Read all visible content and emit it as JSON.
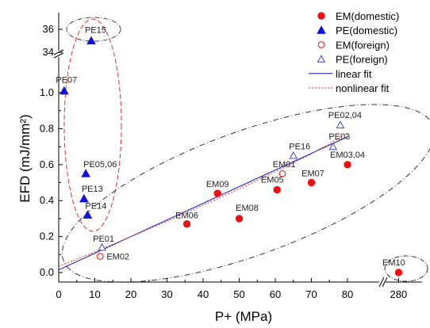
{
  "chart_data": {
    "type": "scatter",
    "xlabel": "P+ (MPa)",
    "ylabel": "EFD (mJ/mm²)",
    "x_ticks": [
      "0",
      "10",
      "20",
      "30",
      "40",
      "50",
      "60",
      "70",
      "80",
      "280"
    ],
    "y_ticks": [
      "0.0",
      "0.2",
      "0.4",
      "0.6",
      "0.8",
      "1.0"
    ],
    "y_ticks_upper": [
      "34",
      "36"
    ],
    "axis_break": {
      "x_from": 88,
      "x_to": 280,
      "y_from": 1.1,
      "y_to": 34
    },
    "legend": {
      "position": "top-right",
      "entries": [
        {
          "key": "em_dom",
          "label": "EM(domestic)",
          "marker": "filled-circle"
        },
        {
          "key": "pe_dom",
          "label": "PE(domestic)",
          "marker": "filled-triangle"
        },
        {
          "key": "em_for",
          "label": "EM(foreign)",
          "marker": "open-circle"
        },
        {
          "key": "pe_for",
          "label": "PE(foreign)",
          "marker": "open-triangle"
        },
        {
          "key": "linear",
          "label": "linear fit",
          "line": "solid"
        },
        {
          "key": "nonlinear",
          "label": "nonlinear fit",
          "line": "dotted"
        }
      ]
    },
    "series": [
      {
        "name": "EM(domestic)",
        "marker": "filled-circle",
        "color": "#ee1111",
        "points": [
          {
            "x": 35.5,
            "y": 0.27,
            "label": "EM06"
          },
          {
            "x": 44,
            "y": 0.44,
            "label": "EM09"
          },
          {
            "x": 50,
            "y": 0.3,
            "label": "EM08"
          },
          {
            "x": 60.5,
            "y": 0.46,
            "label": "EM05"
          },
          {
            "x": 70,
            "y": 0.5,
            "label": "EM07"
          },
          {
            "x": 80,
            "y": 0.6,
            "label": "EM03,04"
          },
          {
            "x": 280,
            "y": 0.0,
            "label": "EM10"
          }
        ]
      },
      {
        "name": "PE(domestic)",
        "marker": "filled-triangle",
        "color": "#1111dd",
        "points": [
          {
            "x": 1.5,
            "y": 1.01,
            "label": "PE07"
          },
          {
            "x": 7.5,
            "y": 0.55,
            "label": "PE05,06"
          },
          {
            "x": 7,
            "y": 0.41,
            "label": "PE13"
          },
          {
            "x": 8,
            "y": 0.32,
            "label": "PE14"
          },
          {
            "x": 9,
            "y": 35,
            "label": "PE15"
          }
        ]
      },
      {
        "name": "EM(foreign)",
        "marker": "open-circle",
        "color": "#ee1111",
        "points": [
          {
            "x": 11.5,
            "y": 0.09,
            "label": "EM02"
          },
          {
            "x": 62,
            "y": 0.55,
            "label": "EM01"
          }
        ]
      },
      {
        "name": "PE(foreign)",
        "marker": "open-triangle",
        "color": "#4444cc",
        "points": [
          {
            "x": 12,
            "y": 0.14,
            "label": "PE01"
          },
          {
            "x": 65,
            "y": 0.65,
            "label": "PE16"
          },
          {
            "x": 76,
            "y": 0.7,
            "label": "PE03"
          },
          {
            "x": 78,
            "y": 0.82,
            "label": "PE02,04"
          }
        ]
      }
    ],
    "fits": [
      {
        "name": "linear fit",
        "style": "solid",
        "color": "#1111cc",
        "x": [
          0,
          80
        ],
        "y": [
          0.015,
          0.755
        ]
      },
      {
        "name": "nonlinear fit",
        "style": "dotted",
        "color": "#dd3333",
        "x": [
          0,
          10,
          20,
          30,
          40,
          50,
          60,
          70,
          80
        ],
        "y": [
          0.035,
          0.115,
          0.2,
          0.285,
          0.375,
          0.465,
          0.56,
          0.66,
          0.775
        ]
      }
    ],
    "grid": false
  }
}
